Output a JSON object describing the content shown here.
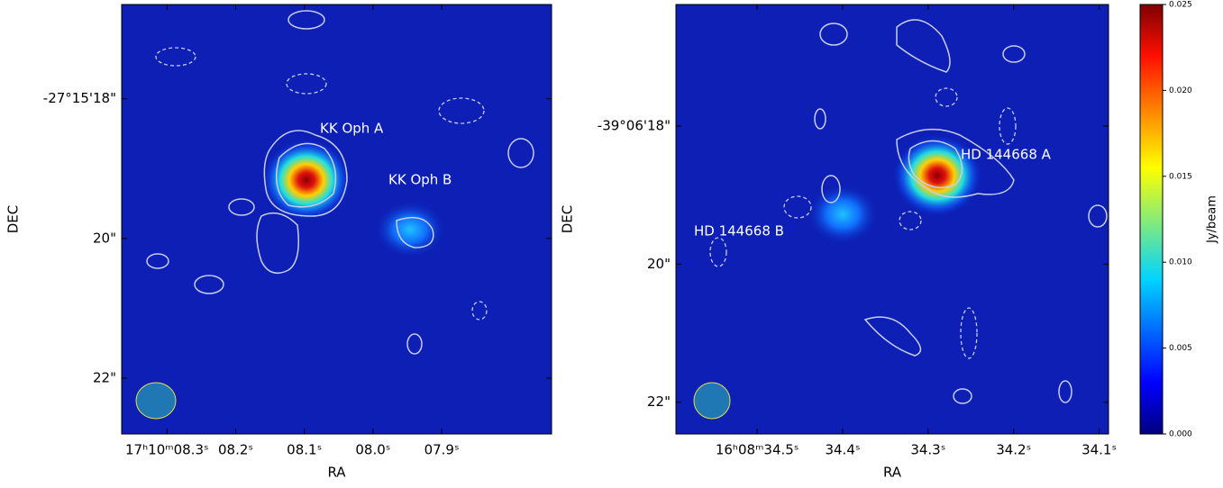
{
  "chart_data": [
    {
      "type": "image",
      "xlabel": "RA",
      "ylabel": "DEC",
      "xlim": [
        8.366,
        7.74
      ],
      "xticks": [
        {
          "value": 8.3,
          "label": "17ʰ10ᵐ08.3ˢ"
        },
        {
          "value": 8.2,
          "label": "08.2ˢ"
        },
        {
          "value": 8.1,
          "label": "08.1ˢ"
        },
        {
          "value": 8.0,
          "label": "08.0ˢ"
        },
        {
          "value": 7.9,
          "label": "07.9ˢ"
        }
      ],
      "ylim": [
        22.8,
        16.65
      ],
      "yticks": [
        {
          "value": 18,
          "label": "-27°15'18\""
        },
        {
          "value": 20,
          "label": "20\""
        },
        {
          "value": 22,
          "label": "22\""
        }
      ],
      "annotations": [
        "KK Oph A",
        "KK Oph B"
      ]
    },
    {
      "type": "image",
      "xlabel": "RA",
      "ylabel": "DEC",
      "xlim": [
        34.595,
        34.089
      ],
      "xticks": [
        {
          "value": 34.5,
          "label": "16ʰ08ᵐ34.5ˢ"
        },
        {
          "value": 34.4,
          "label": "34.4ˢ"
        },
        {
          "value": 34.3,
          "label": "34.3ˢ"
        },
        {
          "value": 34.2,
          "label": "34.2ˢ"
        },
        {
          "value": 34.1,
          "label": "34.1ˢ"
        }
      ],
      "ylim": [
        22.46,
        16.24
      ],
      "yticks": [
        {
          "value": 18,
          "label": "-39°06'18\""
        },
        {
          "value": 20,
          "label": "20\""
        },
        {
          "value": 22,
          "label": "22\""
        }
      ],
      "annotations": [
        "HD 144668 A",
        "HD 144668 B"
      ],
      "colorbar": {
        "label": "Jy/beam",
        "lim": [
          0,
          0.025
        ],
        "ticks": [
          {
            "value": 0,
            "label": "0.000"
          },
          {
            "value": 0.005,
            "label": "0.005"
          },
          {
            "value": 0.01,
            "label": "0.010"
          },
          {
            "value": 0.015,
            "label": "0.015"
          },
          {
            "value": 0.02,
            "label": "0.020"
          },
          {
            "value": 0.025,
            "label": "0.025"
          }
        ]
      }
    }
  ]
}
